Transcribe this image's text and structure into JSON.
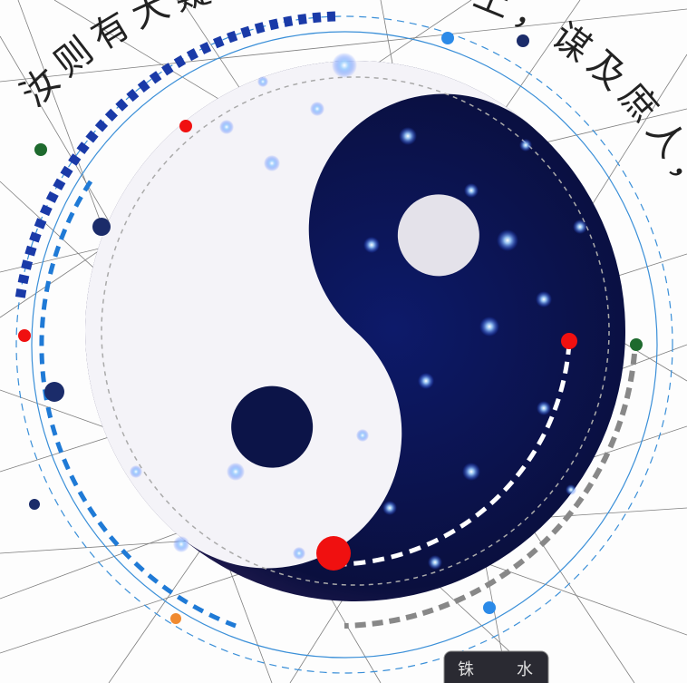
{
  "arc_text_left": "汝则有大疑",
  "arc_text_right": "上，谋及庶人，谋及",
  "badge": {
    "left": "铢",
    "right": "水"
  }
}
